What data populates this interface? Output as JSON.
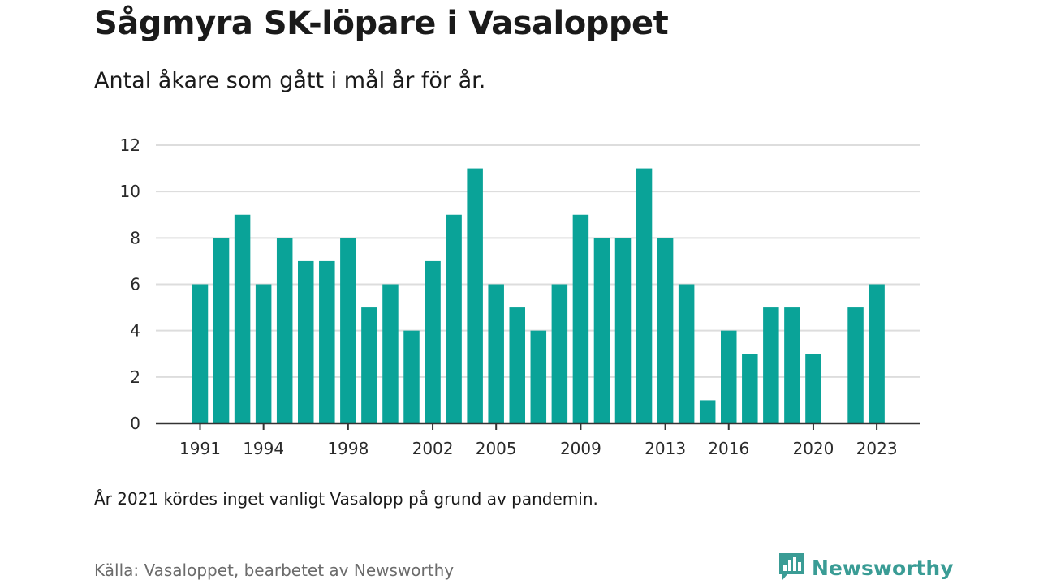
{
  "header": {
    "title": "Sågmyra SK-löpare i Vasaloppet",
    "subtitle": "Antal åkare som gått i mål år för år."
  },
  "footer": {
    "note": "År 2021 kördes inget vanligt Vasalopp på grund av pandemin.",
    "source": "Källa: Vasaloppet, bearbetet av Newsworthy",
    "brand": "Newsworthy",
    "brand_icon": "bar-chart-speech-bubble-icon"
  },
  "colors": {
    "bar": "#0aa398",
    "grid": "#dddddd",
    "axis": "#333333",
    "brand": "#3a9c95"
  },
  "chart_data": {
    "type": "bar",
    "x": [
      1991,
      1992,
      1993,
      1994,
      1995,
      1996,
      1997,
      1998,
      1999,
      2000,
      2001,
      2002,
      2003,
      2004,
      2005,
      2006,
      2007,
      2008,
      2009,
      2010,
      2011,
      2012,
      2013,
      2014,
      2015,
      2016,
      2017,
      2018,
      2019,
      2020,
      2021,
      2022,
      2023
    ],
    "values": [
      6,
      8,
      9,
      6,
      8,
      7,
      7,
      8,
      5,
      6,
      4,
      7,
      9,
      11,
      6,
      5,
      4,
      6,
      9,
      8,
      8,
      11,
      8,
      6,
      1,
      4,
      3,
      5,
      5,
      3,
      null,
      5,
      6
    ],
    "x_tick_labels": [
      "1991",
      "1994",
      "1998",
      "2002",
      "2005",
      "2009",
      "2013",
      "2016",
      "2020",
      "2023"
    ],
    "y_ticks": [
      "0",
      "2",
      "4",
      "6",
      "8",
      "10",
      "12"
    ],
    "ylim": [
      0,
      12
    ],
    "grid": true,
    "legend": false
  }
}
